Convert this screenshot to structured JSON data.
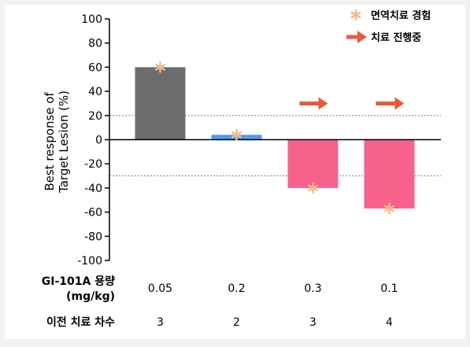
{
  "colors": {
    "background": "#f2f2f2",
    "panel": "#ffffff",
    "axis": "#000000",
    "reference_line": "#7f7f7f",
    "immunotherapy_marker": "#f5b78c",
    "ongoing_arrow": "#e95a3c"
  },
  "legend": {
    "items": [
      {
        "label": "면역치료 경험",
        "marker": "asterisk-icon"
      },
      {
        "label": "치료 진행중",
        "marker": "right-arrow-icon"
      }
    ]
  },
  "chart_data": {
    "type": "bar",
    "ylabel": [
      "Best response of",
      "Target Lesion (%)"
    ],
    "ylim": [
      -100,
      100
    ],
    "yticks": [
      100,
      80,
      60,
      40,
      20,
      0,
      -20,
      -40,
      -60,
      -80,
      -100
    ],
    "reference_lines": [
      20,
      -30
    ],
    "categories": [
      "0.05",
      "0.2",
      "0.3",
      "0.1"
    ],
    "values": [
      60,
      4,
      -40,
      -57
    ],
    "bar_colors": [
      "#6d6d6d",
      "#4d9bf0",
      "#f7628d",
      "#f7628d"
    ],
    "immunotherapy_experience": [
      true,
      true,
      true,
      true
    ],
    "treatment_ongoing": [
      false,
      false,
      true,
      true
    ],
    "table": {
      "rows": [
        {
          "label": "GI-101A 용량\n(mg/kg)",
          "values": [
            "0.05",
            "0.2",
            "0.3",
            "0.1"
          ]
        },
        {
          "label": "이전 치료 차수",
          "values": [
            "3",
            "2",
            "3",
            "4"
          ]
        }
      ]
    }
  }
}
